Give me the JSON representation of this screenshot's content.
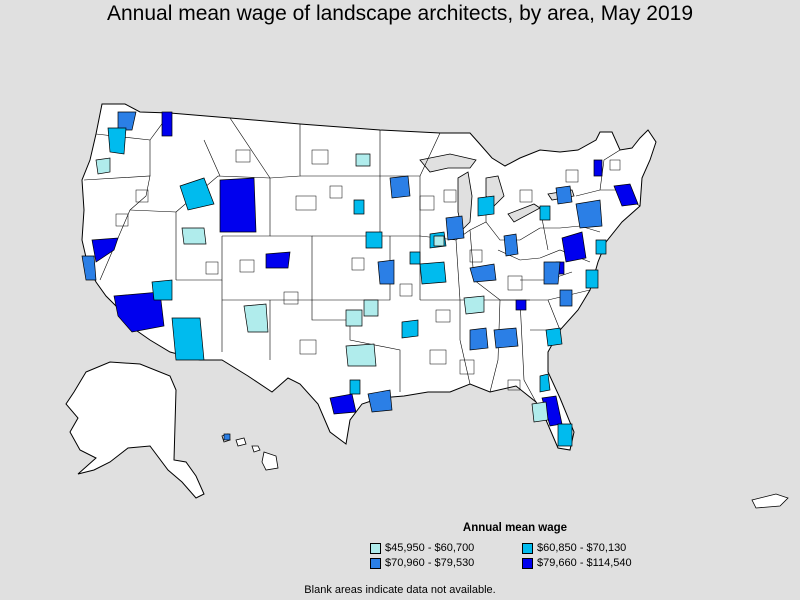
{
  "title": "Annual mean wage of landscape architects, by area, May 2019",
  "legend": {
    "title": "Annual mean wage",
    "items": [
      {
        "label": "$45,950 - $60,700",
        "color": "#b0ecec"
      },
      {
        "label": "$60,850 - $70,130",
        "color": "#00bbee"
      },
      {
        "label": "$70,960 - $79,530",
        "color": "#2b7fe6"
      },
      {
        "label": "$79,660 - $114,540",
        "color": "#0000ee"
      }
    ]
  },
  "note": "Blank areas indicate data not available.",
  "colors": {
    "background": "#e0e0e0",
    "land": "#ffffff",
    "border": "#000000"
  }
}
